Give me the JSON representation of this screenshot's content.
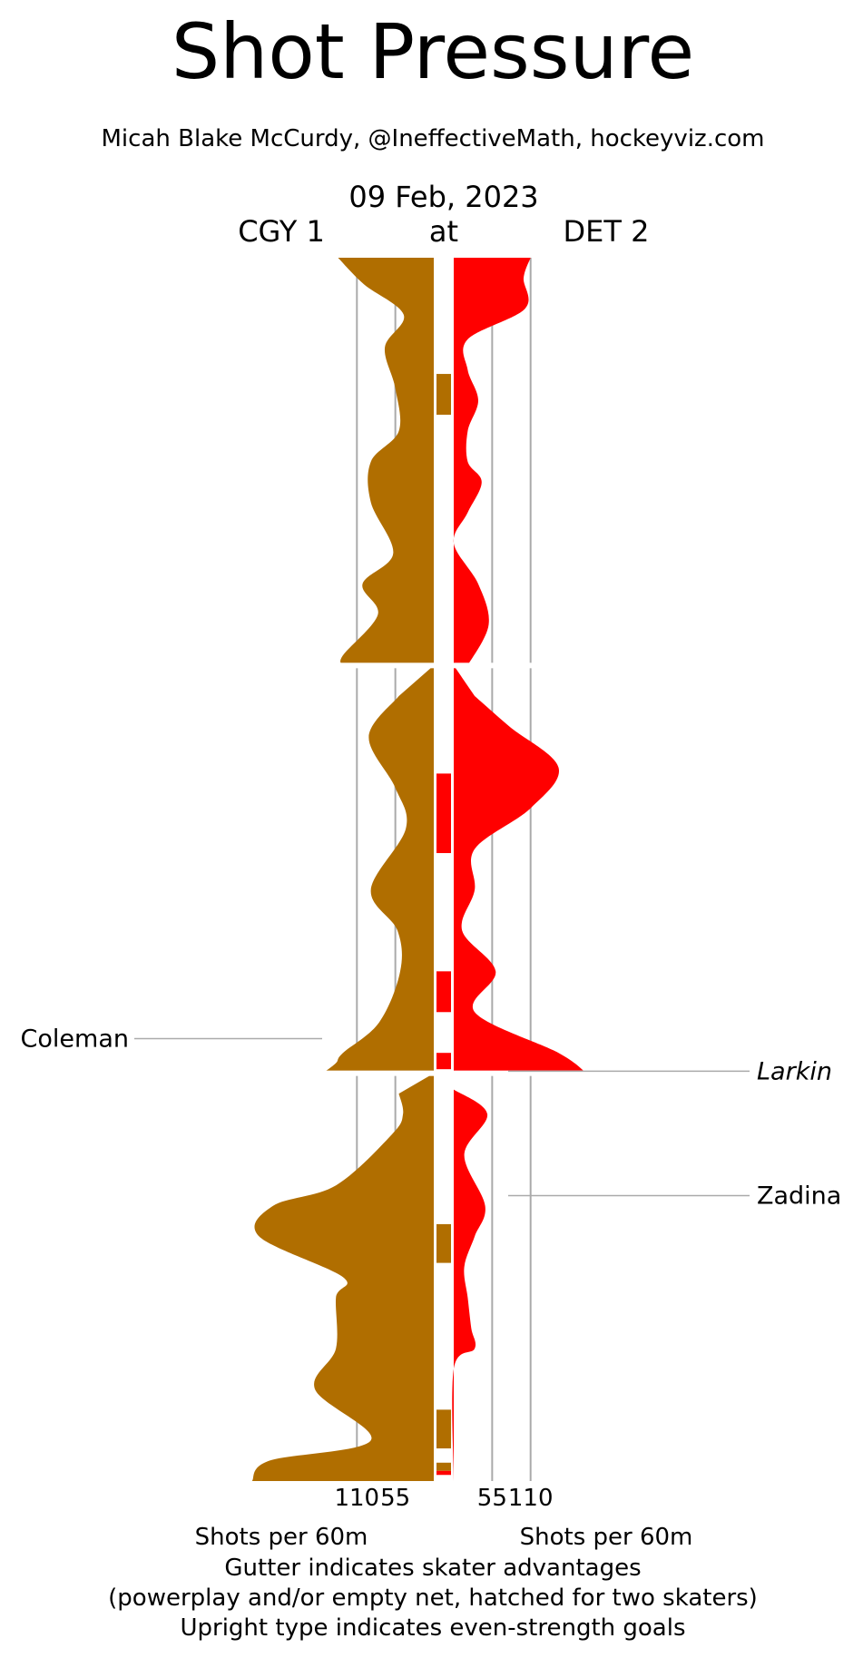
{
  "title": "Shot Pressure",
  "credit": "Micah Blake McCurdy, @IneffectiveMath, hockeyviz.com",
  "date": "09 Feb, 2023",
  "matchup": {
    "away": "CGY 1",
    "at": "at",
    "home": "DET 2"
  },
  "footer": {
    "line1": "Gutter indicates skater advantages",
    "line2": "(powerplay and/or empty net, hatched for two skaters)",
    "line3": "Upright type indicates even-strength goals"
  },
  "colors": {
    "away": "#b06e00",
    "home": "#ff0000",
    "grid": "#aaaaaa"
  },
  "chart_data": {
    "type": "area",
    "orientation": "vertical time axis, mirrored horizontal rates",
    "xlabel_left": "Shots per 60m",
    "xlabel_right": "Shots per 60m",
    "ticks_left": [
      110,
      55
    ],
    "ticks_right": [
      55,
      110
    ],
    "periods": 3,
    "minutes_per_period": 20,
    "series": [
      {
        "name": "CGY 1",
        "side": "left",
        "color": "#b06e00",
        "points": [
          [
            0,
            137
          ],
          [
            1.3,
            100
          ],
          [
            2.8,
            43
          ],
          [
            4.4,
            70
          ],
          [
            6.4,
            55
          ],
          [
            8.5,
            50
          ],
          [
            10.0,
            90
          ],
          [
            12.0,
            90
          ],
          [
            14.5,
            58
          ],
          [
            16.0,
            102
          ],
          [
            17.5,
            80
          ],
          [
            19.5,
            130
          ],
          [
            20,
            130
          ],
          [
            20,
            0
          ],
          [
            21.5,
            50
          ],
          [
            23.5,
            93
          ],
          [
            26.0,
            55
          ],
          [
            28.0,
            40
          ],
          [
            31.0,
            90
          ],
          [
            33.0,
            52
          ],
          [
            35.0,
            48
          ],
          [
            37.5,
            78
          ],
          [
            39.0,
            130
          ],
          [
            39.5,
            140
          ],
          [
            40,
            159
          ],
          [
            40,
            49
          ],
          [
            41.0,
            50
          ],
          [
            42.0,
            44
          ],
          [
            43.0,
            60
          ],
          [
            45.5,
            140
          ],
          [
            46.5,
            230
          ],
          [
            48.0,
            250
          ],
          [
            50.0,
            130
          ],
          [
            51.0,
            140
          ],
          [
            53.5,
            140
          ],
          [
            55.5,
            170
          ],
          [
            58.0,
            90
          ],
          [
            59.0,
            235
          ],
          [
            60,
            260
          ]
        ]
      },
      {
        "name": "DET 2",
        "side": "right",
        "color": "#ff0000",
        "points": [
          [
            0,
            110
          ],
          [
            1.0,
            100
          ],
          [
            2.5,
            102
          ],
          [
            4.0,
            20
          ],
          [
            5.5,
            20
          ],
          [
            7.0,
            35
          ],
          [
            8.5,
            20
          ],
          [
            10.0,
            20
          ],
          [
            11.0,
            40
          ],
          [
            12.5,
            20
          ],
          [
            14.0,
            0
          ],
          [
            16.0,
            35
          ],
          [
            18.0,
            50
          ],
          [
            20,
            20
          ],
          [
            20,
            18
          ],
          [
            21.5,
            30
          ],
          [
            23.0,
            80
          ],
          [
            25.0,
            150
          ],
          [
            27.0,
            110
          ],
          [
            29.0,
            30
          ],
          [
            31.0,
            30
          ],
          [
            33.0,
            12
          ],
          [
            35.0,
            60
          ],
          [
            37.0,
            30
          ],
          [
            39.0,
            150
          ],
          [
            40,
            190
          ],
          [
            40,
            0
          ],
          [
            40.8,
            0
          ],
          [
            42.0,
            48
          ],
          [
            44.0,
            15
          ],
          [
            46.5,
            45
          ],
          [
            48.0,
            30
          ],
          [
            49.5,
            15
          ],
          [
            51.0,
            20
          ],
          [
            52.5,
            25
          ],
          [
            53.5,
            30
          ],
          [
            54.5,
            0
          ],
          [
            60,
            0
          ]
        ]
      }
    ],
    "gutter": [
      {
        "team": "CGY 1",
        "start": 5.7,
        "end": 7.7
      },
      {
        "team": "DET 2",
        "start": 25.3,
        "end": 29.2
      },
      {
        "team": "DET 2",
        "start": 35.0,
        "end": 37.0
      },
      {
        "team": "DET 2",
        "start": 39.0,
        "end": 39.8
      },
      {
        "team": "CGY 1",
        "start": 47.4,
        "end": 49.3
      },
      {
        "team": "CGY 1",
        "start": 56.5,
        "end": 58.4
      },
      {
        "team": "CGY 1",
        "start": 59.1,
        "end": 59.5
      },
      {
        "team": "DET 2",
        "start": 59.5,
        "end": 59.7
      }
    ],
    "goals": [
      {
        "player": "Coleman",
        "team": "CGY 1",
        "time": 38.3,
        "style": "upright"
      },
      {
        "player": "Larkin",
        "team": "DET 2",
        "time": 39.9,
        "style": "italic"
      },
      {
        "player": "Zadina",
        "team": "DET 2",
        "time": 46.0,
        "style": "upright"
      }
    ]
  }
}
